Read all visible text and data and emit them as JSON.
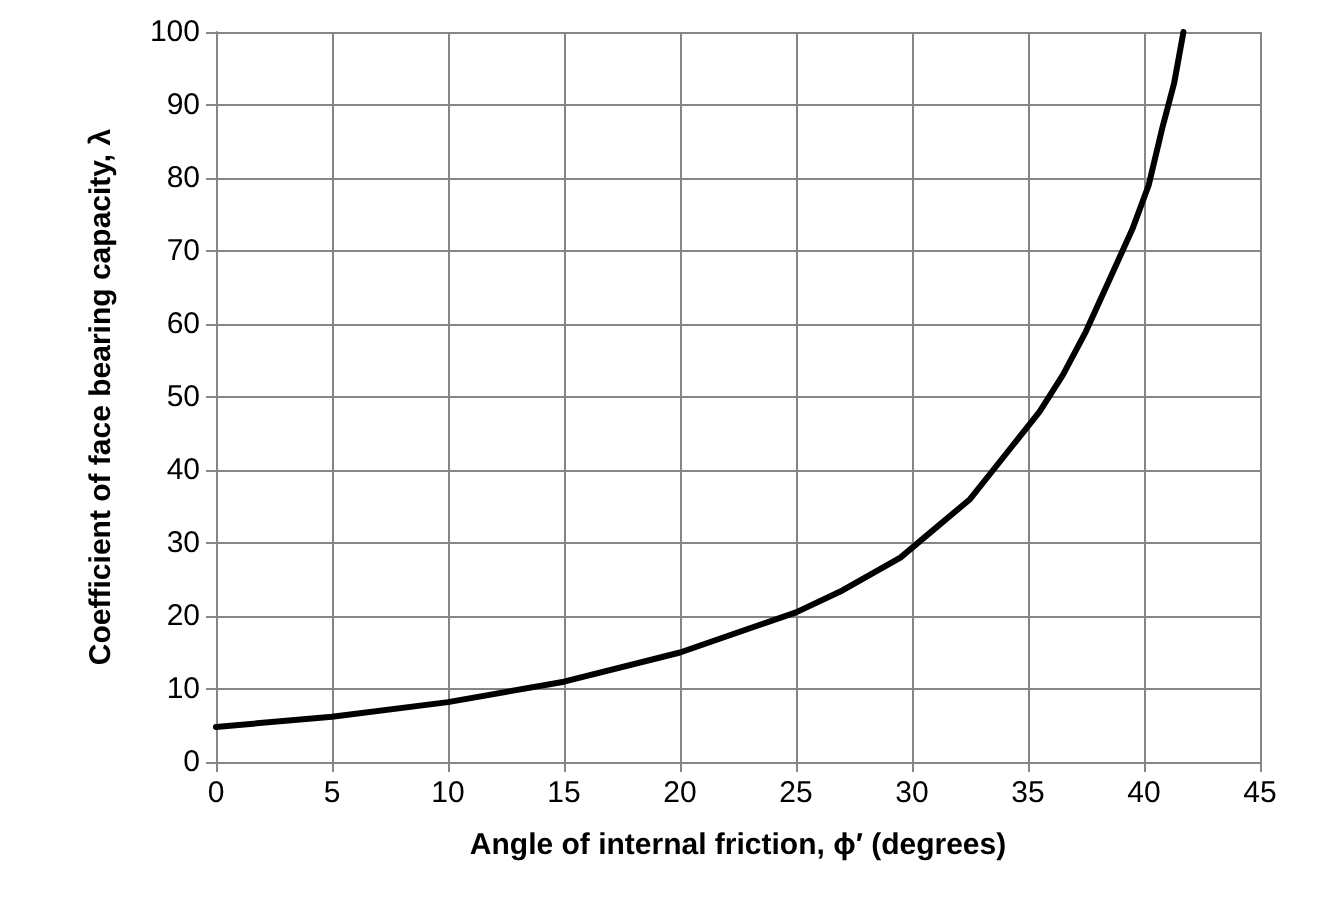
{
  "chart_data": {
    "type": "line",
    "xlabel": "Angle of internal friction, ϕ′ (degrees)",
    "ylabel": "Coefficient of face bearing capacity, λ",
    "x": [
      0,
      5,
      10,
      15,
      20,
      25,
      27,
      29.5,
      31,
      32.5,
      33.5,
      34.5,
      35.5,
      36.5,
      37.5,
      38.5,
      39.5,
      40.2,
      40.8,
      41.3,
      41.7
    ],
    "series": [
      {
        "color": "#000000",
        "values": [
          4.8,
          6.2,
          8.2,
          11,
          15,
          20.5,
          23.5,
          28,
          32,
          36,
          40,
          44,
          48,
          53,
          59,
          66,
          73,
          79,
          87,
          93,
          100
        ]
      }
    ],
    "xlim": [
      0,
      45
    ],
    "xticks": [
      0,
      5,
      10,
      15,
      20,
      25,
      30,
      35,
      40,
      45
    ],
    "ylim": [
      0,
      100
    ],
    "yticks": [
      0,
      10,
      20,
      30,
      40,
      50,
      60,
      70,
      80,
      90,
      100
    ],
    "grid": true,
    "marker": "none",
    "line_style": "solid"
  }
}
